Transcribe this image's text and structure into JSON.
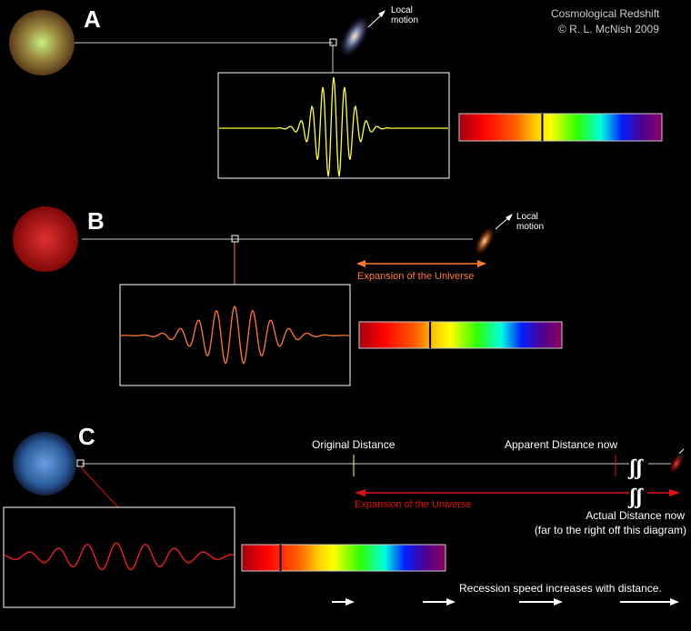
{
  "title": "Cosmological Redshift",
  "copyright": "© R. L. McNish 2009",
  "panels": {
    "a": {
      "letter": "A",
      "local_motion": "Local\nmotion",
      "wave_color": "#ffff33"
    },
    "b": {
      "letter": "B",
      "local_motion": "Local\nmotion",
      "expansion": "Expansion of the Universe",
      "wave_color": "#ff7a30",
      "expansion_color": "#ff7a30"
    },
    "c": {
      "letter": "C",
      "original": "Original Distance",
      "apparent": "Apparent Distance now",
      "expansion": "Expansion of the Universe",
      "actual": "Actual Distance now",
      "actual_note": "(far to the right off this diagram)",
      "recession": "Recession speed increases with distance.",
      "wave_color": "#ff2020",
      "expansion_color": "#e01010"
    }
  }
}
